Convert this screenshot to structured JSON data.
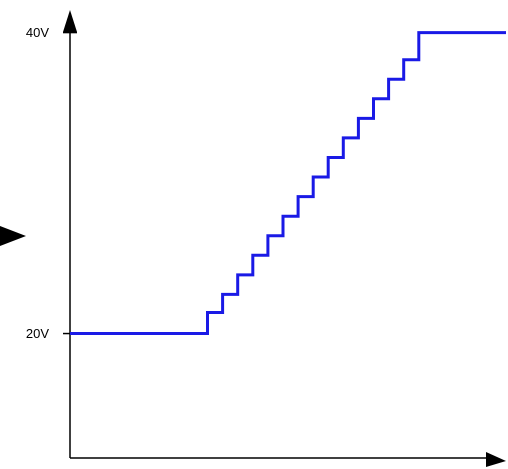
{
  "chart_data": {
    "type": "line",
    "title": "",
    "xlabel": "",
    "ylabel": "",
    "y_ticks": [
      {
        "value": 40,
        "label": "40V"
      },
      {
        "value": 20,
        "label": "20V"
      }
    ],
    "series": [
      {
        "color": "#1a1ae6",
        "step": true,
        "x": [
          0,
          41,
          41,
          45.5,
          45.5,
          50,
          50,
          54.5,
          54.5,
          59,
          59,
          63.5,
          63.5,
          68,
          68,
          72.5,
          72.5,
          77,
          77,
          81.5,
          81.5,
          86,
          86,
          90.5,
          90.5,
          95,
          95,
          99.5,
          99.5,
          104,
          104,
          130
        ],
        "values": [
          20,
          20,
          21.4,
          21.4,
          22.6,
          22.6,
          23.9,
          23.9,
          25.2,
          25.2,
          26.5,
          26.5,
          27.8,
          27.8,
          29.1,
          29.1,
          30.4,
          30.4,
          31.7,
          31.7,
          33.0,
          33.0,
          34.3,
          34.3,
          35.6,
          35.6,
          36.9,
          36.9,
          38.2,
          38.2,
          40,
          40
        ]
      }
    ],
    "xlim": [
      0,
      130
    ],
    "ylim": [
      11.73,
      41.5
    ],
    "grid": false,
    "legend": "none",
    "axis_color": "#000000"
  }
}
